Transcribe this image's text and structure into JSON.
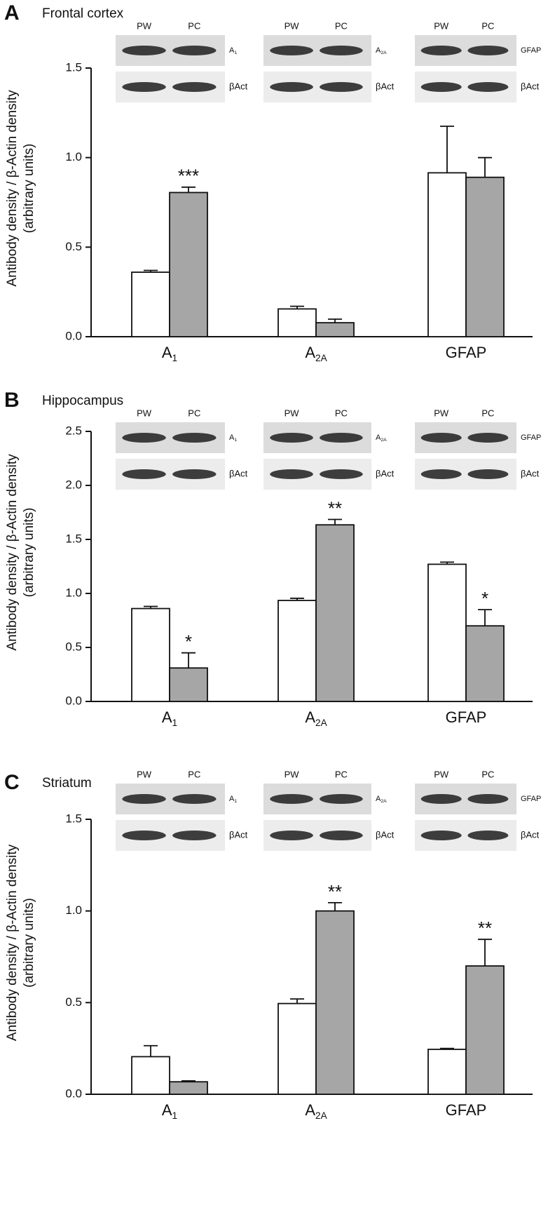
{
  "chart_data": [
    {
      "type": "bar",
      "panel": "A",
      "title": "Frontal cortex",
      "ylabel": [
        "Antibody density / β-Actin density",
        "(arbitrary units)"
      ],
      "categories": [
        {
          "base": "A",
          "sub": "1"
        },
        {
          "base": "A",
          "sub": "2A"
        },
        {
          "base": "GFAP"
        }
      ],
      "control_label": "βAct",
      "series": [
        {
          "name": "PW",
          "color": "#ffffff",
          "values": [
            0.36,
            0.155,
            0.915
          ],
          "errors": [
            0.01,
            0.015,
            0.26
          ]
        },
        {
          "name": "PC",
          "color": "#a6a6a6",
          "values": [
            0.805,
            0.078,
            0.89
          ],
          "errors": [
            0.03,
            0.02,
            0.11
          ],
          "significance": [
            "***",
            null,
            null
          ]
        }
      ],
      "ylim": [
        0,
        1.5
      ],
      "yticks": [
        {
          "value": 0,
          "label": "0.0"
        },
        0.5,
        {
          "value": 1,
          "label": "1.0"
        },
        1.5
      ]
    },
    {
      "type": "bar",
      "panel": "B",
      "title": "Hippocampus",
      "ylabel": [
        "Antibody density / β-Actin density",
        "(arbitrary units)"
      ],
      "categories": [
        {
          "base": "A",
          "sub": "1"
        },
        {
          "base": "A",
          "sub": "2A"
        },
        {
          "base": "GFAP"
        }
      ],
      "control_label": "βAct",
      "series": [
        {
          "name": "PW",
          "color": "#ffffff",
          "values": [
            0.86,
            0.935,
            1.27
          ],
          "errors": [
            0.02,
            0.02,
            0.02
          ]
        },
        {
          "name": "PC",
          "color": "#a6a6a6",
          "values": [
            0.31,
            1.635,
            0.7
          ],
          "errors": [
            0.14,
            0.05,
            0.15
          ],
          "significance": [
            "*",
            "**",
            "*"
          ]
        }
      ],
      "ylim": [
        0,
        2.5
      ],
      "yticks": [
        {
          "value": 0,
          "label": "0.0"
        },
        0.5,
        {
          "value": 1,
          "label": "1.0"
        },
        1.5,
        {
          "value": 2,
          "label": "2.0"
        },
        2.5
      ]
    },
    {
      "type": "bar",
      "panel": "C",
      "title": "Striatum",
      "ylabel": [
        "Antibody density / β-Actin density",
        "(arbitrary units)"
      ],
      "categories": [
        {
          "base": "A",
          "sub": "1"
        },
        {
          "base": "A",
          "sub": "2A"
        },
        {
          "base": "GFAP"
        }
      ],
      "control_label": "βAct",
      "series": [
        {
          "name": "PW",
          "color": "#ffffff",
          "values": [
            0.205,
            0.495,
            0.245
          ],
          "errors": [
            0.06,
            0.025,
            0.005
          ]
        },
        {
          "name": "PC",
          "color": "#a6a6a6",
          "values": [
            0.068,
            1.0,
            0.7
          ],
          "errors": [
            0.005,
            0.045,
            0.145
          ],
          "significance": [
            null,
            "**",
            "**"
          ]
        }
      ],
      "ylim": [
        0,
        1.5
      ],
      "yticks": [
        {
          "value": 0,
          "label": "0.0"
        },
        0.5,
        {
          "value": 1,
          "label": "1.0"
        },
        1.5
      ]
    }
  ]
}
